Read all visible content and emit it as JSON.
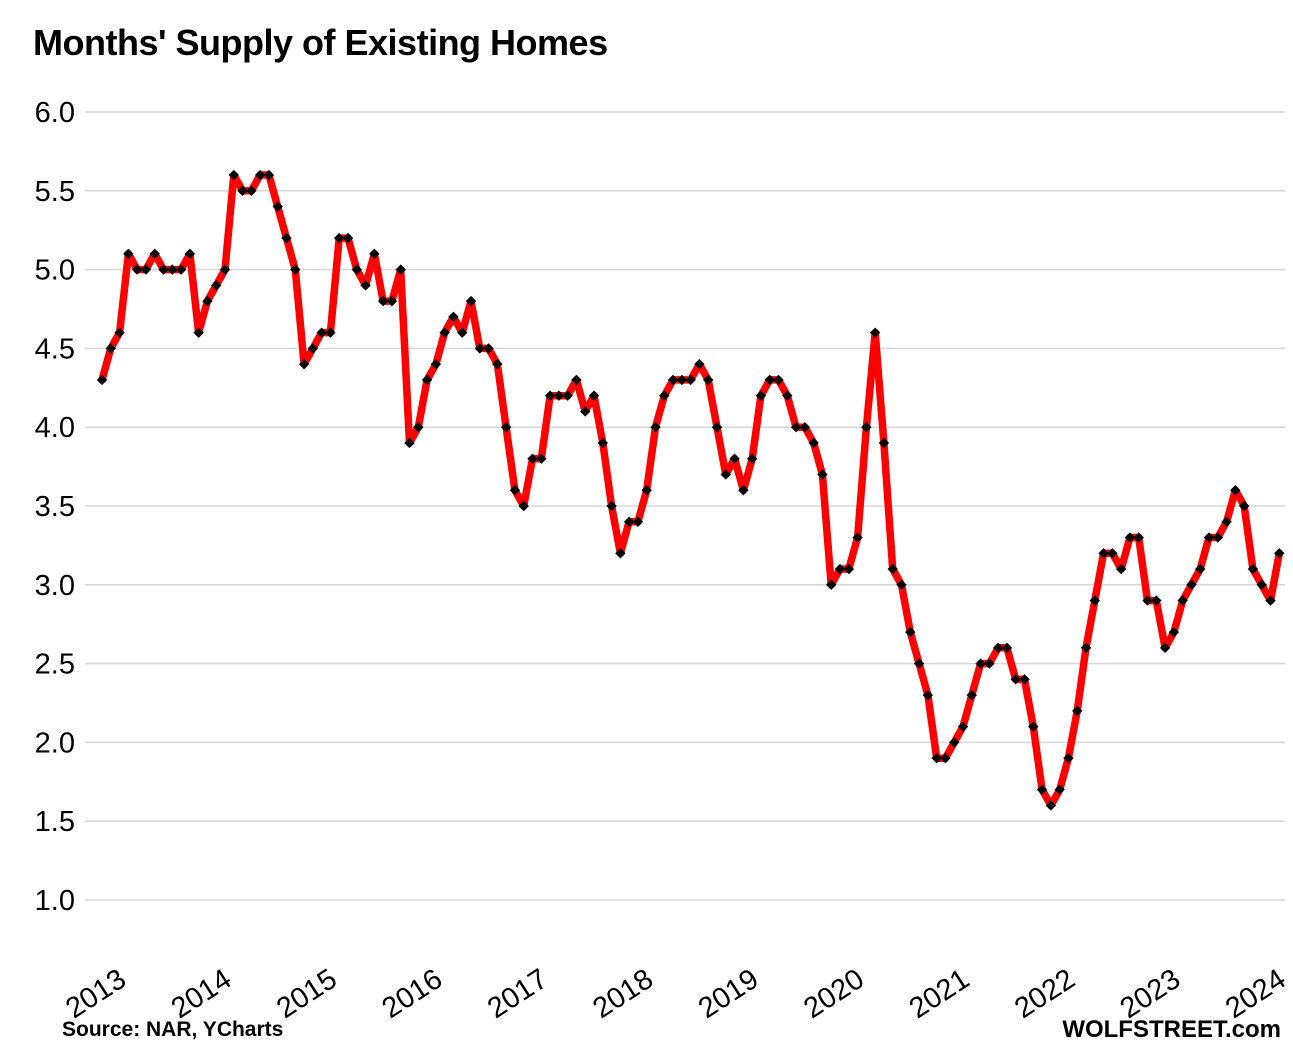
{
  "title": "Months' Supply of Existing Homes",
  "footer": {
    "source": "Source: NAR, YCharts",
    "branding": "WOLFSTREET.com"
  },
  "chart_data": {
    "type": "line",
    "title": "Months' Supply of Existing Homes",
    "unit": "months of supply",
    "frequency": "monthly",
    "x_start": "2013-01",
    "x_end": "2024-03",
    "xlabel": "",
    "ylabel": "",
    "ylim": [
      1.0,
      6.0
    ],
    "y_tick_labels": [
      "6.0",
      "5.5",
      "5.0",
      "4.5",
      "4.0",
      "3.5",
      "3.0",
      "2.5",
      "2.0",
      "1.5",
      "1.0"
    ],
    "x_tick_labels": [
      "2013",
      "2014",
      "2015",
      "2016",
      "2017",
      "2018",
      "2019",
      "2020",
      "2021",
      "2022",
      "2023",
      "2024"
    ],
    "grid": "horizontal-only",
    "legend": "none",
    "line_color": "#FF0000",
    "marker_color": "#000000",
    "marker_shape": "diamond",
    "series": [
      {
        "name": "Months' supply of existing homes",
        "values": [
          4.3,
          4.5,
          4.6,
          5.1,
          5.0,
          5.0,
          5.1,
          5.0,
          5.0,
          5.0,
          5.1,
          4.6,
          4.8,
          4.9,
          5.0,
          5.6,
          5.5,
          5.5,
          5.6,
          5.6,
          5.4,
          5.2,
          5.0,
          4.4,
          4.5,
          4.6,
          4.6,
          5.2,
          5.2,
          5.0,
          4.9,
          5.1,
          4.8,
          4.8,
          5.0,
          3.9,
          4.0,
          4.3,
          4.4,
          4.6,
          4.7,
          4.6,
          4.8,
          4.5,
          4.5,
          4.4,
          4.0,
          3.6,
          3.5,
          3.8,
          3.8,
          4.2,
          4.2,
          4.2,
          4.3,
          4.1,
          4.2,
          3.9,
          3.5,
          3.2,
          3.4,
          3.4,
          3.6,
          4.0,
          4.2,
          4.3,
          4.3,
          4.3,
          4.4,
          4.3,
          4.0,
          3.7,
          3.8,
          3.6,
          3.8,
          4.2,
          4.3,
          4.3,
          4.2,
          4.0,
          4.0,
          3.9,
          3.7,
          3.0,
          3.1,
          3.1,
          3.3,
          4.0,
          4.6,
          3.9,
          3.1,
          3.0,
          2.7,
          2.5,
          2.3,
          1.9,
          1.9,
          2.0,
          2.1,
          2.3,
          2.5,
          2.5,
          2.6,
          2.6,
          2.4,
          2.4,
          2.1,
          1.7,
          1.6,
          1.7,
          1.9,
          2.2,
          2.6,
          2.9,
          3.2,
          3.2,
          3.1,
          3.3,
          3.3,
          2.9,
          2.9,
          2.6,
          2.7,
          2.9,
          3.0,
          3.1,
          3.3,
          3.3,
          3.4,
          3.6,
          3.5,
          3.1,
          3.0,
          2.9,
          3.2
        ]
      }
    ]
  }
}
